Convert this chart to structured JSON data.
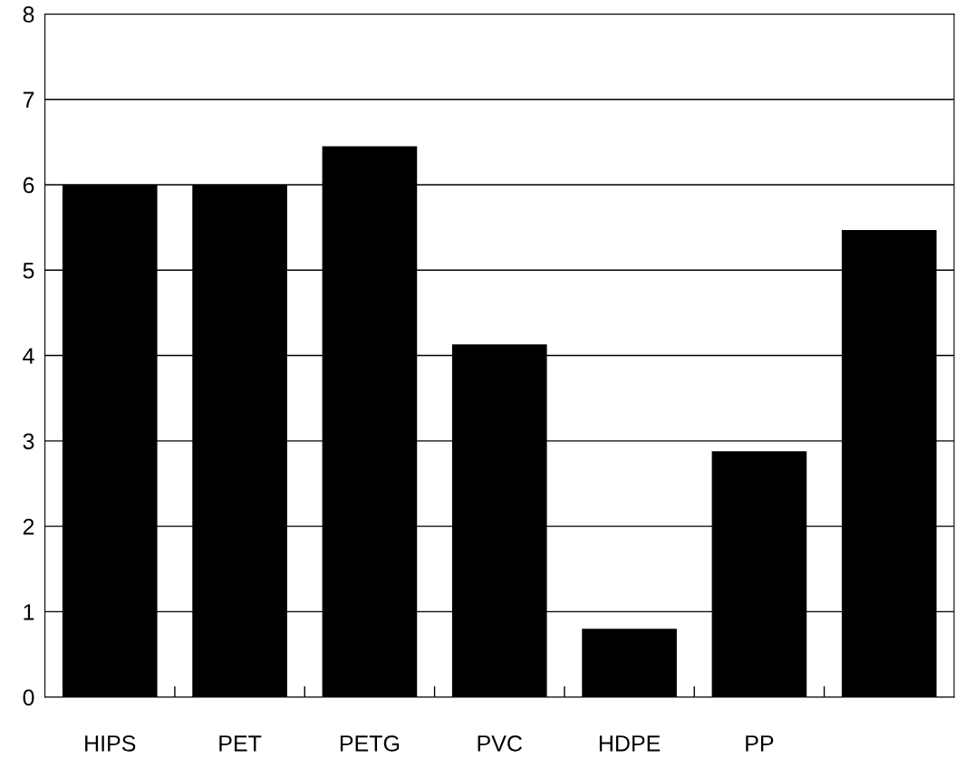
{
  "chart_data": {
    "type": "bar",
    "categories": [
      "HIPS",
      "PET",
      "PETG",
      "PVC",
      "HDPE",
      "PP",
      null
    ],
    "values": [
      6.0,
      6.0,
      6.45,
      4.13,
      0.8,
      2.88,
      5.47
    ],
    "color": "#000000",
    "ylim": [
      0,
      8
    ],
    "yticks": [
      0,
      1,
      2,
      3,
      4,
      5,
      6,
      7,
      8
    ],
    "grid": "y",
    "legend": false
  }
}
